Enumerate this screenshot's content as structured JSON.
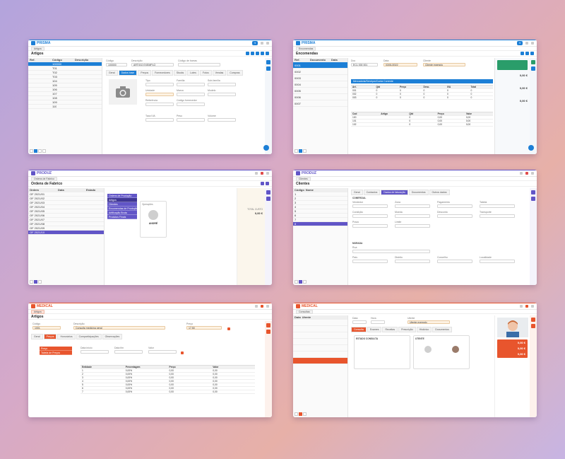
{
  "colors": {
    "bg_gradient": [
      "#b3a4dd",
      "#e7b0a8"
    ],
    "prisma_blue": "#1c7fd6",
    "produz_purple": "#6155c7",
    "medical_orange": "#e8552d"
  },
  "panel1": {
    "brand": "PRISMA",
    "title": "Artigos",
    "grid_headers": [
      "Ref.",
      "Código",
      "Descrição"
    ],
    "grid_rows": [
      "100000",
      "T01",
      "T02",
      "T03",
      "104",
      "105",
      "106",
      "107",
      "108",
      "109",
      "110"
    ],
    "fields": {
      "codigo": "Código",
      "codigo_value": "100000",
      "descricao": "Descrição",
      "descricao_value": "ARTIGO EXEMPLO",
      "barcode": "Código de barras"
    },
    "tabs": [
      "Geral",
      "Dados base",
      "Preços",
      "Fornecedores",
      "Stocks",
      "Lotes",
      "Fotos",
      "Vendas",
      "Compras",
      "Encomendas",
      "Outros dados"
    ],
    "form_labels": [
      "Tipo",
      "Família",
      "Sub-família",
      "Unidade",
      "Marca",
      "Modelo",
      "Referência",
      "Código fornecedor",
      "Taxa IVA",
      "Peso",
      "Volume"
    ]
  },
  "panel2": {
    "brand": "PRISMA",
    "title": "Encomendas",
    "grid_headers": [
      "Ref.",
      "Documento",
      "Data"
    ],
    "grid_rows": [
      "0001",
      "0002",
      "0003",
      "0004",
      "0005",
      "0006",
      "0007"
    ],
    "fields": {
      "doc_label": "Doc",
      "doc_value": "ECL 000 001",
      "data_label": "Data",
      "data_value": "03/01/2022",
      "cliente_label": "Cliente",
      "cliente_value": "Cliente exemplo"
    },
    "section": "Mercadoria/Serviços/Conta Corrente",
    "totals": [
      "0,00 €",
      "0,00 €",
      "0,00 €"
    ]
  },
  "panel3": {
    "brand": "PRODUZ",
    "title": "Ordens de Fabrico",
    "grid_headers": [
      "Ordem",
      "Data",
      "Estado"
    ],
    "grid_rows": [
      "OF 2021/01",
      "OF 2021/02",
      "OF 2021/03",
      "OF 2021/04",
      "OF 2021/05",
      "OF 2021/06",
      "OF 2021/07",
      "OF 2021/08",
      "OF 2021/09",
      "OF 2021/10"
    ],
    "menu": [
      "Ordens de Produção",
      "Artigos",
      "Clientes",
      "Encomendas de Produção",
      "Artificação Bruta",
      "Produtos Finais"
    ],
    "card_title": "Operações",
    "card_person": "ANDRÉ",
    "totals_label": "TOTAL CUSTO",
    "totals_value": "0,00 €"
  },
  "panel4": {
    "brand": "PRODUZ",
    "title": "Clientes",
    "tabs": [
      "Geral",
      "Contactos",
      "Dados de faturação",
      "Documentos",
      "Outros dados"
    ],
    "section_a": "COMERCIAL",
    "section_b": "MORADA",
    "menu_left": [
      "1",
      "2",
      "3",
      "4",
      "5",
      "6",
      "7",
      "8"
    ]
  },
  "panel5": {
    "brand": "MEDICAL",
    "title": "Artigos",
    "fields": {
      "codigo": "Código",
      "codigo_value": "1001",
      "descricao": "Descrição",
      "descricao_value": "Consulta medicina geral",
      "preco": "Preço",
      "preco_value": "17,50"
    },
    "tabs": [
      "Geral",
      "Preços",
      "Honorários",
      "Comparticipações",
      "Observações"
    ],
    "left_items": [
      "Preço",
      "Tabela de Preços"
    ],
    "table_headers": [
      "Entidade",
      "Percentagem",
      "Preço",
      "Valor"
    ],
    "table_rows": [
      [
        "1",
        "0,00%",
        "0,00",
        "0,00"
      ],
      [
        "2",
        "0,00%",
        "0,00",
        "0,00"
      ],
      [
        "3",
        "0,00%",
        "0,00",
        "0,00"
      ],
      [
        "4",
        "0,00%",
        "0,00",
        "0,00"
      ],
      [
        "5",
        "0,00%",
        "0,00",
        "0,00"
      ],
      [
        "6",
        "0,00%",
        "0,00",
        "0,00"
      ],
      [
        "7",
        "0,00%",
        "0,00",
        "0,00"
      ]
    ]
  },
  "panel6": {
    "brand": "MEDICAL",
    "title": "Consultas",
    "fields": {
      "data": "Data",
      "hora": "Hora",
      "utente": "Utente",
      "utente_value": "Utente exemplo"
    },
    "tabs": [
      "Consulta",
      "Exames",
      "Receitas",
      "Prescrição",
      "Histórico",
      "Documentos"
    ],
    "card_a": "ESTADO CONSULTA",
    "card_b": "UTENTE",
    "totals": [
      "0,00 €",
      "0,00 €",
      "0,00 €"
    ]
  }
}
